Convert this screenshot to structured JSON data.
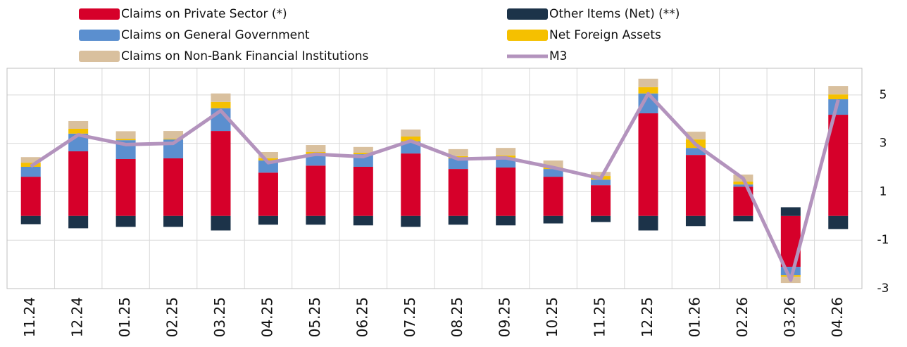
{
  "chart_data": {
    "type": "bar",
    "stacked": true,
    "categories": [
      "11.24",
      "12.24",
      "01.25",
      "02.25",
      "03.25",
      "04.25",
      "05.25",
      "06.25",
      "07.25",
      "08.25",
      "09.25",
      "10.25",
      "11.25",
      "12.25",
      "01.26",
      "02.26",
      "03.26",
      "04.26"
    ],
    "series": [
      {
        "name": "Claims on Private Sector (*)",
        "color": "#d6002a",
        "values": [
          1.62,
          2.67,
          2.35,
          2.38,
          3.51,
          1.79,
          2.08,
          2.03,
          2.58,
          1.94,
          2.0,
          1.62,
          1.27,
          4.24,
          2.52,
          1.21,
          -2.1,
          4.18
        ]
      },
      {
        "name": "Other Items (Net) (**)",
        "color": "#1c3349",
        "values": [
          -0.34,
          -0.51,
          -0.45,
          -0.45,
          -0.6,
          -0.36,
          -0.36,
          -0.39,
          -0.45,
          -0.36,
          -0.39,
          -0.31,
          -0.25,
          -0.6,
          -0.42,
          -0.22,
          0.36,
          -0.54
        ]
      },
      {
        "name": "Claims on General Government",
        "color": "#5b8fcf",
        "values": [
          0.41,
          0.73,
          0.78,
          0.78,
          0.94,
          0.5,
          0.44,
          0.52,
          0.5,
          0.44,
          0.41,
          0.32,
          0.23,
          0.82,
          0.29,
          0.09,
          -0.35,
          0.64
        ]
      },
      {
        "name": "Net Foreign Assets",
        "color": "#f5c000",
        "values": [
          0.17,
          0.2,
          0.05,
          0.03,
          0.26,
          0.09,
          0.12,
          0.06,
          0.2,
          0.09,
          0.09,
          0.06,
          0.15,
          0.26,
          0.35,
          0.12,
          -0.06,
          0.2
        ]
      },
      {
        "name": "Claims on Non-Bank Financial Institutions",
        "color": "#d9c09e",
        "values": [
          0.23,
          0.32,
          0.32,
          0.32,
          0.35,
          0.26,
          0.29,
          0.24,
          0.29,
          0.29,
          0.31,
          0.29,
          0.17,
          0.35,
          0.32,
          0.29,
          -0.26,
          0.35
        ]
      },
      {
        "name": "M3",
        "color": "#b393bd",
        "type": "line",
        "values": [
          2.05,
          3.35,
          2.95,
          3.0,
          4.35,
          2.2,
          2.55,
          2.45,
          3.1,
          2.35,
          2.4,
          2.0,
          1.55,
          5.05,
          2.95,
          1.55,
          -2.65,
          4.8
        ]
      }
    ],
    "ylim": [
      -3,
      6.1
    ],
    "yticks": [
      5,
      3,
      1,
      -1,
      -3
    ],
    "grid": true
  }
}
